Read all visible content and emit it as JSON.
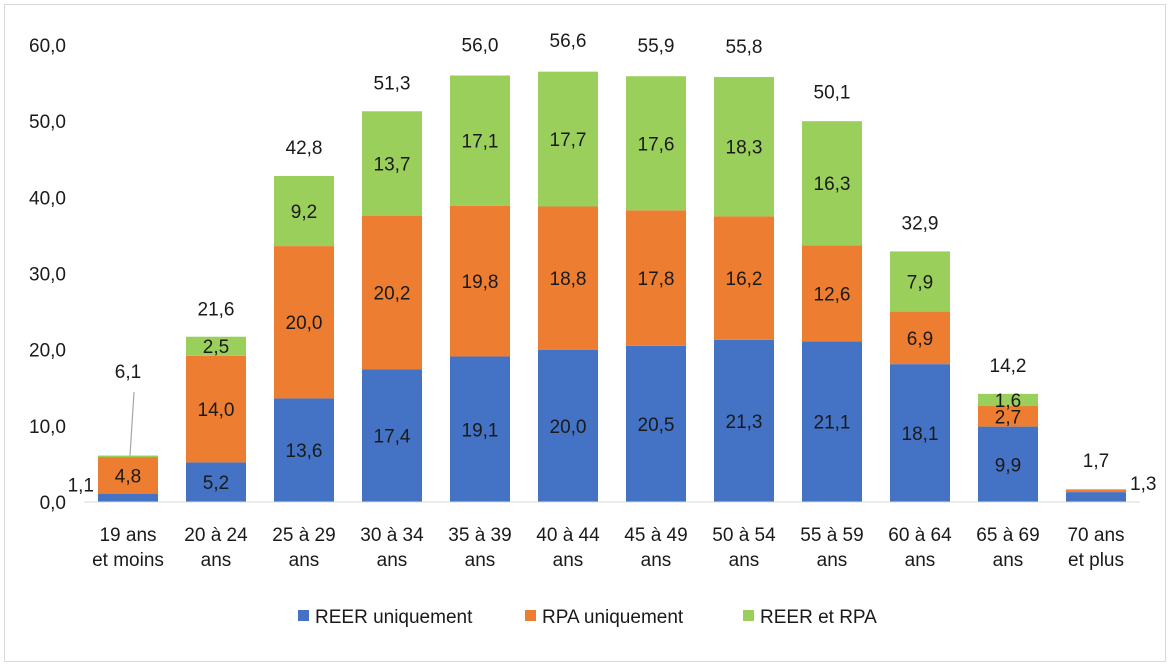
{
  "chart_data": {
    "type": "bar",
    "stacked": true,
    "title": "",
    "xlabel": "",
    "ylabel": "",
    "ylim": [
      0,
      60
    ],
    "y_ticks": [
      "0,0",
      "10,0",
      "20,0",
      "30,0",
      "40,0",
      "50,0",
      "60,0"
    ],
    "grid": false,
    "legend_position": "bottom",
    "categories": [
      [
        "19 ans",
        "et moins"
      ],
      [
        "20 à 24",
        "ans"
      ],
      [
        "25 à 29",
        "ans"
      ],
      [
        "30 à 34",
        "ans"
      ],
      [
        "35 à 39",
        "ans"
      ],
      [
        "40 à 44",
        "ans"
      ],
      [
        "45 à 49",
        "ans"
      ],
      [
        "50 à 54",
        "ans"
      ],
      [
        "55 à 59",
        "ans"
      ],
      [
        "60 à 64",
        "ans"
      ],
      [
        "65 à 69",
        "ans"
      ],
      [
        "70 ans",
        "et plus"
      ]
    ],
    "series": [
      {
        "name": "REER uniquement",
        "color": "#4472c4",
        "values": [
          1.1,
          5.2,
          13.6,
          17.4,
          19.1,
          20.0,
          20.5,
          21.3,
          21.1,
          18.1,
          9.9,
          1.3
        ],
        "labels": [
          "1,1",
          "5,2",
          "13,6",
          "17,4",
          "19,1",
          "20,0",
          "20,5",
          "21,3",
          "21,1",
          "18,1",
          "9,9",
          "1,3"
        ]
      },
      {
        "name": "RPA uniquement",
        "color": "#ed7d31",
        "values": [
          4.8,
          14.0,
          20.0,
          20.2,
          19.8,
          18.8,
          17.8,
          16.2,
          12.6,
          6.9,
          2.7,
          0.3
        ],
        "labels": [
          "4,8",
          "14,0",
          "20,0",
          "20,2",
          "19,8",
          "18,8",
          "17,8",
          "16,2",
          "12,6",
          "6,9",
          "2,7",
          ""
        ]
      },
      {
        "name": "REER et RPA",
        "color": "#9bcf5b",
        "values": [
          0.2,
          2.5,
          9.2,
          13.7,
          17.1,
          17.7,
          17.6,
          18.3,
          16.3,
          7.9,
          1.6,
          0.1
        ],
        "labels": [
          "",
          "2,5",
          "9,2",
          "13,7",
          "17,1",
          "17,7",
          "17,6",
          "18,3",
          "16,3",
          "7,9",
          "1,6",
          ""
        ]
      }
    ],
    "totals": [
      6.1,
      21.6,
      42.8,
      51.3,
      56.0,
      56.6,
      55.9,
      55.8,
      50.1,
      32.9,
      14.2,
      1.7
    ],
    "total_labels": [
      "6,1",
      "21,6",
      "42,8",
      "51,3",
      "56,0",
      "56,6",
      "55,9",
      "55,8",
      "50,1",
      "32,9",
      "14,2",
      "1,7"
    ]
  }
}
